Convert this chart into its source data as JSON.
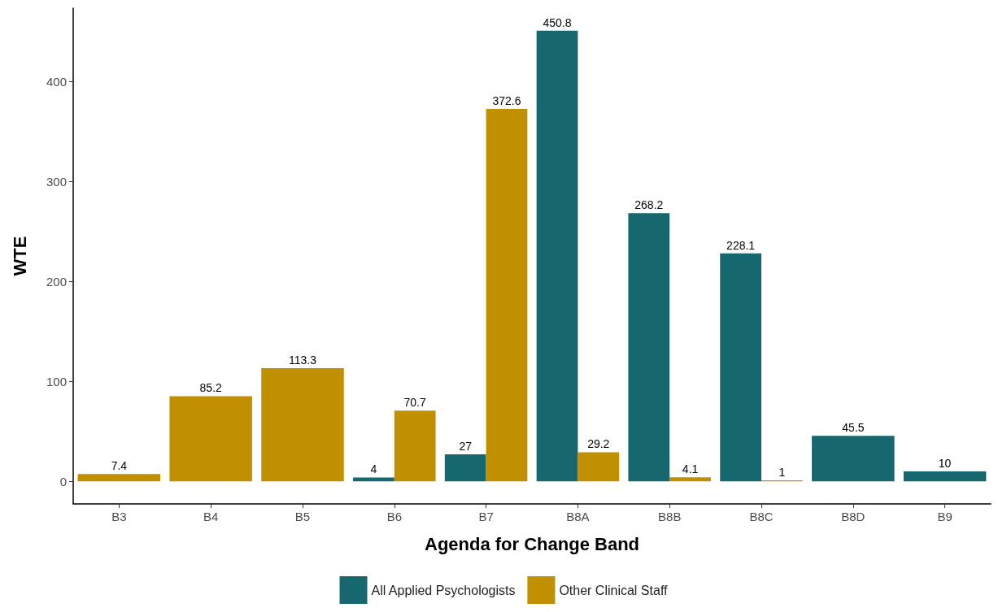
{
  "chart_data": {
    "type": "bar",
    "xlabel": "Agenda for Change Band",
    "ylabel": "WTE",
    "categories": [
      "B3",
      "B4",
      "B5",
      "B6",
      "B7",
      "B8A",
      "B8B",
      "B8C",
      "B8D",
      "B9"
    ],
    "series": [
      {
        "name": "All Applied Psychologists",
        "color": "#17686e",
        "values": [
          null,
          null,
          null,
          4,
          27,
          450.8,
          268.2,
          228.1,
          45.5,
          10
        ]
      },
      {
        "name": "Other Clinical Staff",
        "color": "#c09000",
        "values": [
          7.4,
          85.2,
          113.3,
          70.7,
          372.6,
          29.2,
          4.1,
          1,
          null,
          null
        ]
      }
    ],
    "ylim": [
      -22.5,
      473.3
    ],
    "yticks": [
      0,
      100,
      200,
      300,
      400
    ],
    "grid": false,
    "legend": "bottom",
    "data_labels": true
  }
}
